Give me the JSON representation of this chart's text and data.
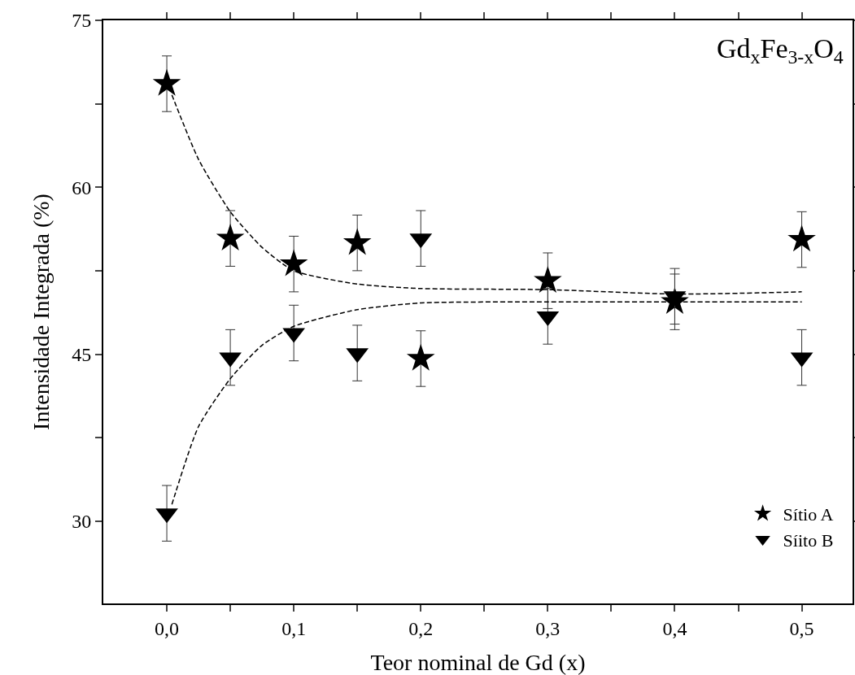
{
  "chart_data": {
    "type": "scatter",
    "xlabel": "Teor nominal de Gd (x)",
    "ylabel": "Intensidade Integrada (%)",
    "annotations": [
      "Gd$_{x}$Fe$_{3-x}$O$_{4}$"
    ],
    "xlim": [
      -0.05,
      0.54
    ],
    "ylim": [
      22.6,
      75
    ],
    "xticks": [
      {
        "value": 0,
        "label": "0,0"
      },
      {
        "value": 0.05,
        "label": null
      },
      {
        "value": 0.1,
        "label": "0,1"
      },
      {
        "value": 0.15,
        "label": null
      },
      {
        "value": 0.2,
        "label": "0,2"
      },
      {
        "value": 0.25,
        "label": null
      },
      {
        "value": 0.3,
        "label": "0,3"
      },
      {
        "value": 0.35,
        "label": null
      },
      {
        "value": 0.4,
        "label": "0,4"
      },
      {
        "value": 0.45,
        "label": null
      },
      {
        "value": 0.5,
        "label": "0,5"
      }
    ],
    "yticks": [
      {
        "value": 30,
        "label": "30"
      },
      {
        "value": 37.5,
        "label": null
      },
      {
        "value": 45,
        "label": "45"
      },
      {
        "value": 52.5,
        "label": null
      },
      {
        "value": 60,
        "label": "60"
      },
      {
        "value": 67.5,
        "label": null
      },
      {
        "value": 75,
        "label": "75"
      }
    ],
    "grid": false,
    "legend": "bottom right",
    "series": [
      {
        "name": "Sítio A",
        "color": "#000000",
        "marker": "star",
        "x": [
          0,
          0.05,
          0.1,
          0.15,
          0.2,
          0.3,
          0.4,
          0.5
        ],
        "values": [
          69.3,
          55.4,
          53.1,
          55.0,
          44.6,
          51.6,
          49.7,
          55.3
        ],
        "errors": [
          2.5,
          2.5,
          2.5,
          2.5,
          2.5,
          2.5,
          2.5,
          2.5
        ]
      },
      {
        "name": "Síito B",
        "color": "#000000",
        "marker": "triangle",
        "x": [
          0,
          0.05,
          0.1,
          0.15,
          0.2,
          0.3,
          0.4,
          0.5
        ],
        "values": [
          30.7,
          44.7,
          46.9,
          45.1,
          55.4,
          48.4,
          50.2,
          44.7
        ],
        "errors": [
          2.5,
          2.5,
          2.5,
          2.5,
          2.5,
          2.5,
          2.5,
          2.5
        ]
      },
      {
        "type": "line",
        "color": "#000000",
        "marker": "none",
        "line_style": "dashed",
        "x": [
          0.004,
          0.025,
          0.05,
          0.075,
          0.1,
          0.15,
          0.2,
          0.3,
          0.4,
          0.5
        ],
        "values": [
          68.3,
          62.5,
          57.8,
          54.6,
          52.5,
          51.3,
          50.9,
          50.8,
          50.4,
          50.6
        ]
      },
      {
        "type": "line",
        "color": "#000000",
        "marker": "none",
        "line_style": "dashed",
        "x": [
          0.004,
          0.025,
          0.05,
          0.075,
          0.1,
          0.15,
          0.2,
          0.3,
          0.4,
          0.5
        ],
        "values": [
          31.5,
          38.5,
          42.8,
          45.8,
          47.5,
          49.0,
          49.6,
          49.7,
          49.7,
          49.7
        ]
      }
    ]
  }
}
